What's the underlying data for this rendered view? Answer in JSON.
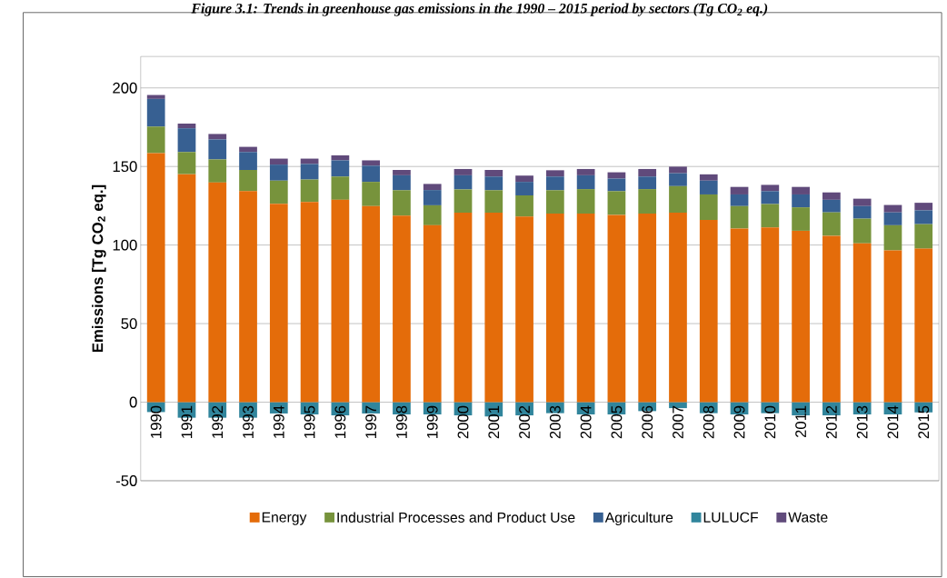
{
  "chart_data": {
    "type": "bar",
    "title": "Figure 3.1: Trends in greenhouse gas emissions in the 1990 – 2015 period by sectors (Tg CO$_{2}$ eq.)",
    "ylabel": "Emissions [Tg CO$_{2}$ eq.]",
    "categories": [
      "1990",
      "1991",
      "1992",
      "1993",
      "1994",
      "1995",
      "1996",
      "1997",
      "1998",
      "1999",
      "2000",
      "2001",
      "2002",
      "2003",
      "2004",
      "2005",
      "2006",
      "2007",
      "2008",
      "2009",
      "2010",
      "2011",
      "2012",
      "2013",
      "2014",
      "2015"
    ],
    "stacked": true,
    "series": [
      {
        "name": "Energy",
        "color": "#e46c0a",
        "values": [
          158.5,
          145.1,
          139.8,
          134.3,
          126.3,
          127.4,
          128.8,
          124.8,
          118.7,
          112.6,
          120.6,
          120.6,
          118.1,
          120.0,
          120.0,
          119.2,
          120.0,
          120.6,
          116.0,
          110.5,
          111.2,
          109.1,
          105.9,
          101.1,
          96.6,
          97.7
        ]
      },
      {
        "name": "Industrial Processes and Product Use",
        "color": "#77933c",
        "values": [
          16.9,
          14.1,
          14.7,
          13.5,
          14.7,
          14.3,
          14.8,
          15.4,
          16.2,
          12.7,
          14.8,
          14.3,
          13.5,
          14.9,
          15.6,
          15.1,
          15.6,
          16.9,
          16.2,
          14.3,
          14.9,
          14.9,
          14.9,
          15.7,
          16.0,
          15.6
        ]
      },
      {
        "name": "Agriculture",
        "color": "#376092",
        "values": [
          17.6,
          15.1,
          12.7,
          11.4,
          10.2,
          9.9,
          10.3,
          10.3,
          9.5,
          9.7,
          9.0,
          8.7,
          8.6,
          8.7,
          8.8,
          8.0,
          8.0,
          8.2,
          8.8,
          7.4,
          8.2,
          8.2,
          8.0,
          8.0,
          8.2,
          8.8
        ]
      },
      {
        "name": "LULUCF",
        "color": "#31859c",
        "values": [
          -6.3,
          -9.9,
          -9.9,
          -9.9,
          -7.2,
          -7.8,
          -8.4,
          -7.2,
          -7.8,
          -7.8,
          -8.4,
          -9.1,
          -8.4,
          -7.0,
          -7.8,
          -7.8,
          -5.7,
          -3.8,
          -7.0,
          -7.8,
          -7.0,
          -8.4,
          -8.4,
          -7.8,
          -7.8,
          -6.5
        ]
      },
      {
        "name": "Waste",
        "color": "#604a7b",
        "values": [
          2.5,
          3.0,
          3.5,
          3.3,
          3.8,
          3.4,
          3.2,
          3.4,
          3.4,
          3.9,
          4.0,
          4.2,
          4.0,
          4.0,
          4.0,
          4.0,
          4.8,
          4.2,
          4.0,
          4.8,
          4.0,
          4.8,
          4.7,
          4.7,
          4.7,
          4.8
        ]
      }
    ],
    "ylim": [
      -50,
      220
    ],
    "yticks": [
      -50,
      0,
      50,
      100,
      150,
      200
    ],
    "grid": "y",
    "legend": "bottom"
  }
}
